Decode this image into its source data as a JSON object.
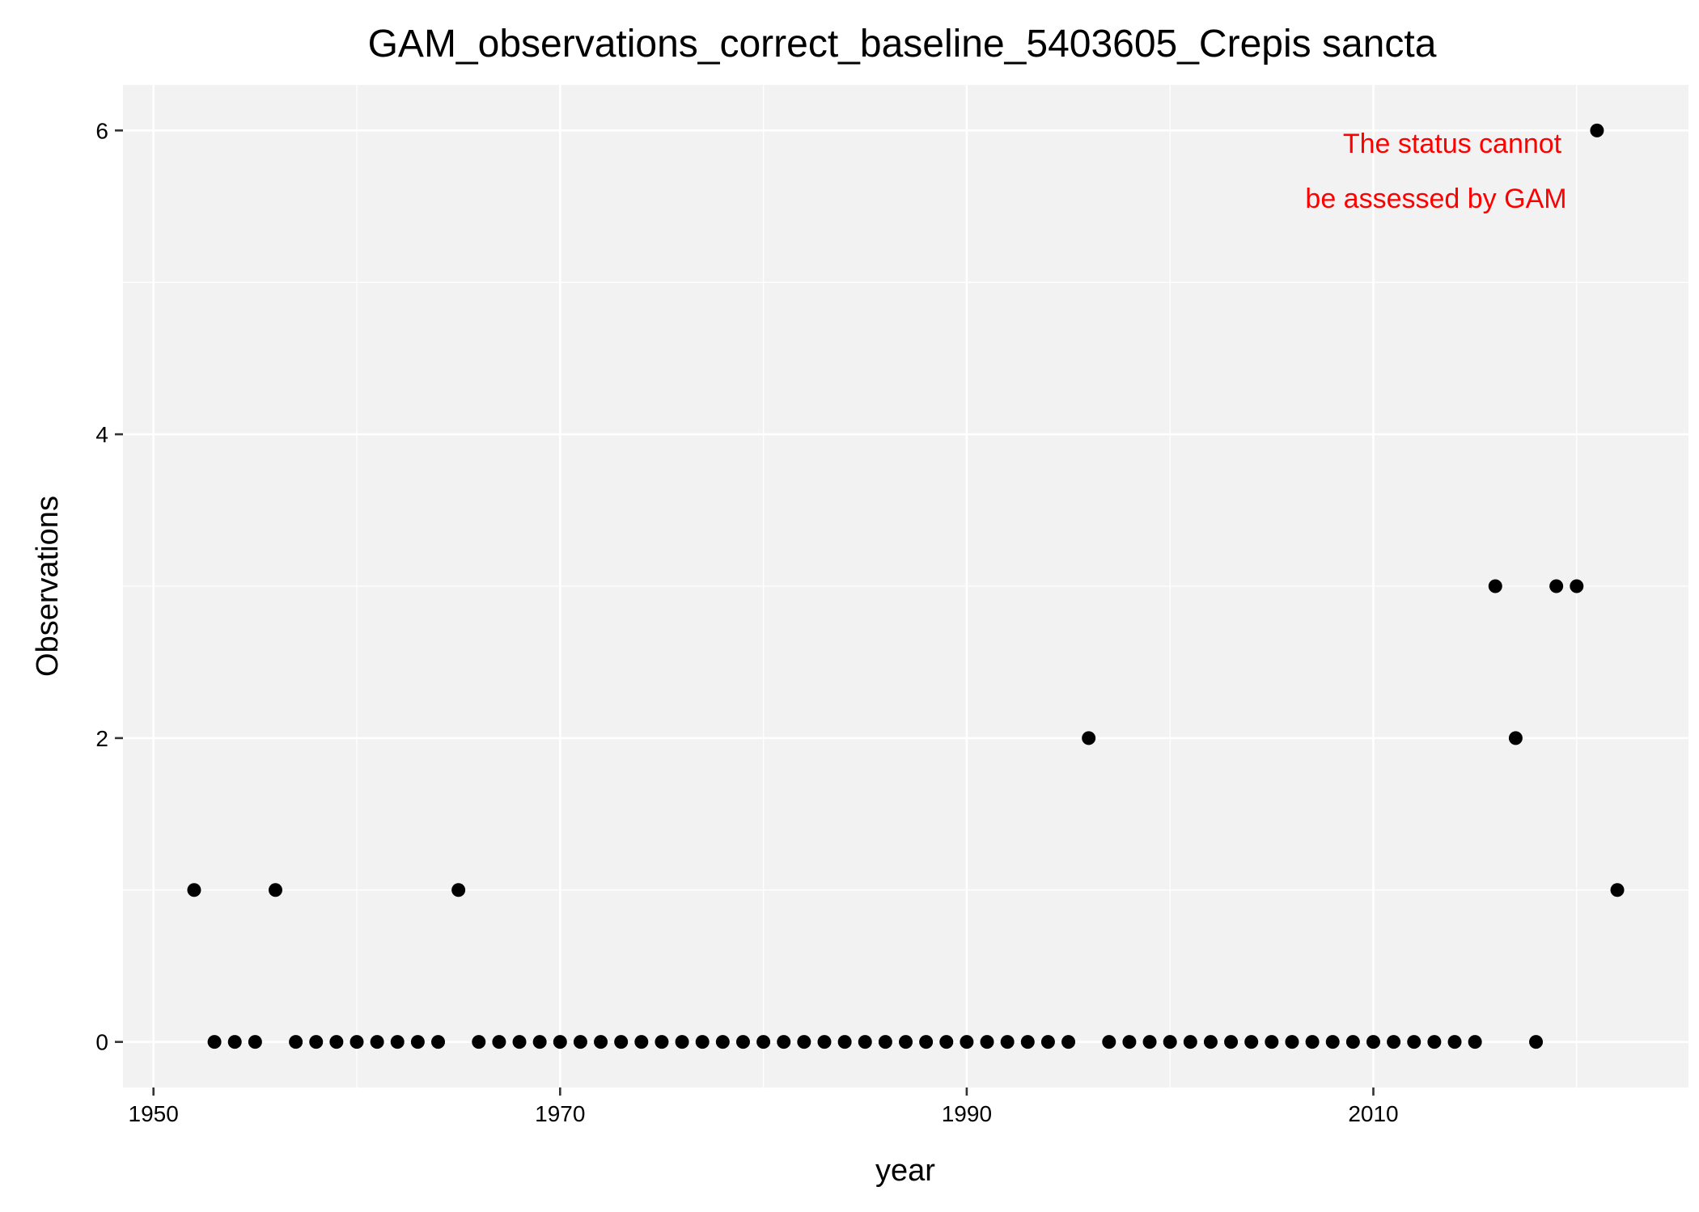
{
  "chart_data": {
    "type": "scatter",
    "title": "GAM_observations_correct_baseline_5403605_Crepis sancta",
    "xlabel": "year",
    "ylabel": "Observations",
    "xlim": [
      1948.5,
      2025.5
    ],
    "ylim": [
      -0.3,
      6.3
    ],
    "x_ticks": [
      1950,
      1970,
      1990,
      2010
    ],
    "y_ticks": [
      0,
      2,
      4,
      6
    ],
    "x_minor_ticks": [
      1960,
      1980,
      2000,
      2020
    ],
    "y_minor_ticks": [
      1,
      3,
      5
    ],
    "grid": true,
    "legend": "none",
    "annotation": [
      "The status cannot",
      "be assessed by GAM"
    ],
    "annotation_color": "#ff0000",
    "background_color": "#f2f2f2",
    "point_color": "#000000",
    "x": [
      1952,
      1953,
      1954,
      1955,
      1956,
      1957,
      1958,
      1959,
      1960,
      1961,
      1962,
      1963,
      1964,
      1965,
      1966,
      1967,
      1968,
      1969,
      1970,
      1971,
      1972,
      1973,
      1974,
      1975,
      1976,
      1977,
      1978,
      1979,
      1980,
      1981,
      1982,
      1983,
      1984,
      1985,
      1986,
      1987,
      1988,
      1989,
      1990,
      1991,
      1992,
      1993,
      1994,
      1995,
      1996,
      1997,
      1998,
      1999,
      2000,
      2001,
      2002,
      2003,
      2004,
      2005,
      2006,
      2007,
      2008,
      2009,
      2010,
      2011,
      2012,
      2013,
      2014,
      2015,
      2016,
      2017,
      2018,
      2019,
      2020,
      2021,
      2022
    ],
    "y": [
      1,
      0,
      0,
      0,
      1,
      0,
      0,
      0,
      0,
      0,
      0,
      0,
      0,
      1,
      0,
      0,
      0,
      0,
      0,
      0,
      0,
      0,
      0,
      0,
      0,
      0,
      0,
      0,
      0,
      0,
      0,
      0,
      0,
      0,
      0,
      0,
      0,
      0,
      0,
      0,
      0,
      0,
      0,
      0,
      2,
      0,
      0,
      0,
      0,
      0,
      0,
      0,
      0,
      0,
      0,
      0,
      0,
      0,
      0,
      0,
      0,
      0,
      0,
      0,
      3,
      2,
      0,
      3,
      3,
      6,
      1
    ]
  }
}
